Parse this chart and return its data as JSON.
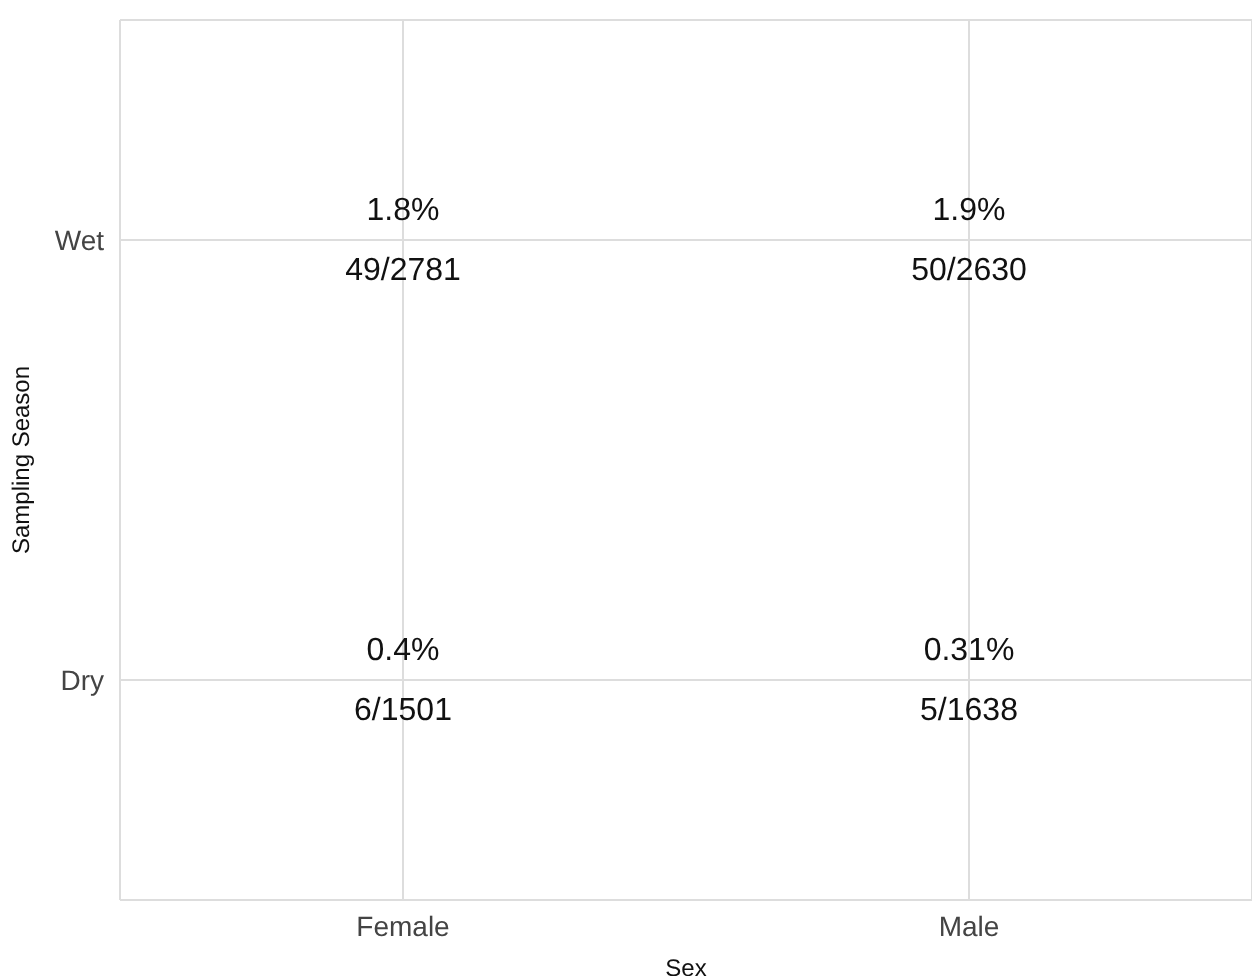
{
  "chart_data": {
    "type": "heatmap",
    "xlabel": "Sex",
    "ylabel": "Sampling Season",
    "categories": [
      "Female",
      "Male"
    ],
    "y_categories": [
      "Wet",
      "Dry"
    ],
    "cells": [
      [
        1.8,
        1.9
      ],
      [
        0.4,
        0.31
      ]
    ],
    "cell_labels": [
      [
        "1.8%",
        "1.9%"
      ],
      [
        "0.4%",
        "0.31%"
      ]
    ],
    "annotations": [
      "49/2781",
      "50/2630",
      "6/1501",
      "5/1638"
    ],
    "grid": true
  }
}
